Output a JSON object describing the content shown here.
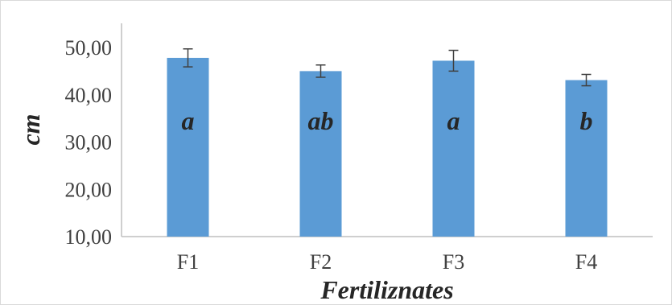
{
  "chart_data": {
    "type": "bar",
    "categories": [
      "F1",
      "F2",
      "F3",
      "F4"
    ],
    "values": [
      47.8,
      45.0,
      47.2,
      43.1
    ],
    "error": [
      1.9,
      1.3,
      2.2,
      1.2
    ],
    "bar_labels": [
      "a",
      "ab",
      "a",
      "b"
    ],
    "title": "",
    "xlabel": "Fertiliznates",
    "ylabel": "cm",
    "ylim": [
      10,
      50
    ],
    "yticks": [
      10,
      20,
      30,
      40,
      50
    ],
    "ytick_labels": [
      "10,00",
      "20,00",
      "30,00",
      "40,00",
      "50,00"
    ],
    "bar_color": "#5b9bd5",
    "error_color": "#404040",
    "grid": false,
    "legend": "none"
  }
}
